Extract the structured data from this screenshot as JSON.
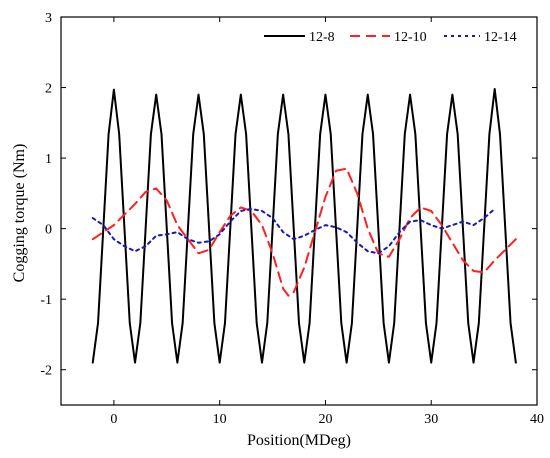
{
  "chart_data": {
    "type": "line",
    "xlabel": "Position(MDeg)",
    "ylabel": "Cogging torque (Nm)",
    "xlim": [
      -5,
      40
    ],
    "ylim": [
      -2.5,
      3
    ],
    "xticks": [
      0,
      10,
      20,
      30,
      40
    ],
    "yticks": [
      -2,
      -1,
      0,
      1,
      2,
      3
    ],
    "legend_position": "top-right",
    "grid": false,
    "series": [
      {
        "name": "12-8",
        "color": "#000000",
        "dash": "solid",
        "x": [
          -2,
          -1.5,
          -1,
          -0.5,
          0,
          0.5,
          1,
          1.5,
          2,
          2.5,
          3,
          3.5,
          4,
          4.5,
          5,
          5.5,
          6,
          6.5,
          7,
          7.5,
          8,
          8.5,
          9,
          9.5,
          10,
          10.5,
          11,
          11.5,
          12,
          12.5,
          13,
          13.5,
          14,
          14.5,
          15,
          15.5,
          16,
          16.5,
          17,
          17.5,
          18,
          18.5,
          19,
          19.5,
          20,
          20.5,
          21,
          21.5,
          22,
          22.5,
          23,
          23.5,
          24,
          24.5,
          25,
          25.5,
          26,
          26.5,
          27,
          27.5,
          28,
          28.5,
          29,
          29.5,
          30,
          30.5,
          31,
          31.5,
          32,
          32.5,
          33,
          33.5,
          34,
          34.5,
          35,
          35.5,
          36,
          36.5,
          37,
          37.5,
          38
        ],
        "y": [
          -1.9,
          -1.34,
          0,
          1.34,
          1.97,
          1.34,
          0,
          -1.34,
          -1.9,
          -1.34,
          0,
          1.34,
          1.9,
          1.34,
          0,
          -1.34,
          -1.9,
          -1.34,
          0,
          1.34,
          1.9,
          1.34,
          0,
          -1.34,
          -1.9,
          -1.34,
          0,
          1.34,
          1.9,
          1.34,
          0,
          -1.34,
          -1.9,
          -1.34,
          0,
          1.34,
          1.9,
          1.34,
          0,
          -1.34,
          -1.9,
          -1.34,
          0,
          1.34,
          1.9,
          1.34,
          0,
          -1.34,
          -1.9,
          -1.34,
          0,
          1.34,
          1.9,
          1.34,
          0,
          -1.34,
          -1.9,
          -1.34,
          0,
          1.34,
          1.9,
          1.34,
          0,
          -1.34,
          -1.9,
          -1.34,
          0,
          1.34,
          1.9,
          1.34,
          0,
          -1.34,
          -1.9,
          -1.34,
          0,
          1.34,
          1.98,
          1.34,
          0,
          -1.34,
          -1.9
        ]
      },
      {
        "name": "12-10",
        "color": "#ff2020",
        "dash": "dashed",
        "x": [
          -2,
          0,
          2,
          3,
          4,
          5,
          6,
          8,
          9,
          10,
          11,
          12,
          13,
          14,
          15,
          16,
          16.5,
          17,
          18,
          19,
          20,
          21,
          22,
          23,
          24,
          25,
          26,
          27,
          28,
          29,
          30,
          31,
          32,
          33,
          34,
          35,
          36,
          37,
          38
        ],
        "y": [
          -0.15,
          0.05,
          0.35,
          0.52,
          0.57,
          0.4,
          0.05,
          -0.35,
          -0.3,
          -0.05,
          0.18,
          0.3,
          0.25,
          0.05,
          -0.35,
          -0.85,
          -0.95,
          -0.9,
          -0.55,
          -0.05,
          0.45,
          0.82,
          0.85,
          0.5,
          0.0,
          -0.35,
          -0.4,
          -0.15,
          0.15,
          0.3,
          0.25,
          0.05,
          -0.2,
          -0.45,
          -0.6,
          -0.62,
          -0.45,
          -0.3,
          -0.15
        ]
      },
      {
        "name": "12-14",
        "color": "#1a1ab0",
        "dash": "dotted",
        "x": [
          -2,
          -1,
          0,
          1,
          2,
          3,
          4,
          5,
          6,
          7,
          8,
          9,
          10,
          11,
          12,
          13,
          14,
          15,
          16,
          17,
          18,
          19,
          20,
          21,
          22,
          23,
          24,
          25,
          26,
          27,
          28,
          29,
          30,
          31,
          32,
          33,
          34,
          35,
          36
        ],
        "y": [
          0.15,
          0.05,
          -0.15,
          -0.25,
          -0.32,
          -0.25,
          -0.1,
          -0.08,
          -0.05,
          -0.15,
          -0.2,
          -0.18,
          -0.08,
          0.1,
          0.25,
          0.28,
          0.25,
          0.15,
          -0.05,
          -0.15,
          -0.1,
          -0.02,
          0.05,
          0.02,
          -0.05,
          -0.2,
          -0.32,
          -0.35,
          -0.25,
          -0.05,
          0.1,
          0.12,
          0.05,
          0.0,
          0.05,
          0.1,
          0.05,
          0.15,
          0.28
        ]
      }
    ]
  }
}
